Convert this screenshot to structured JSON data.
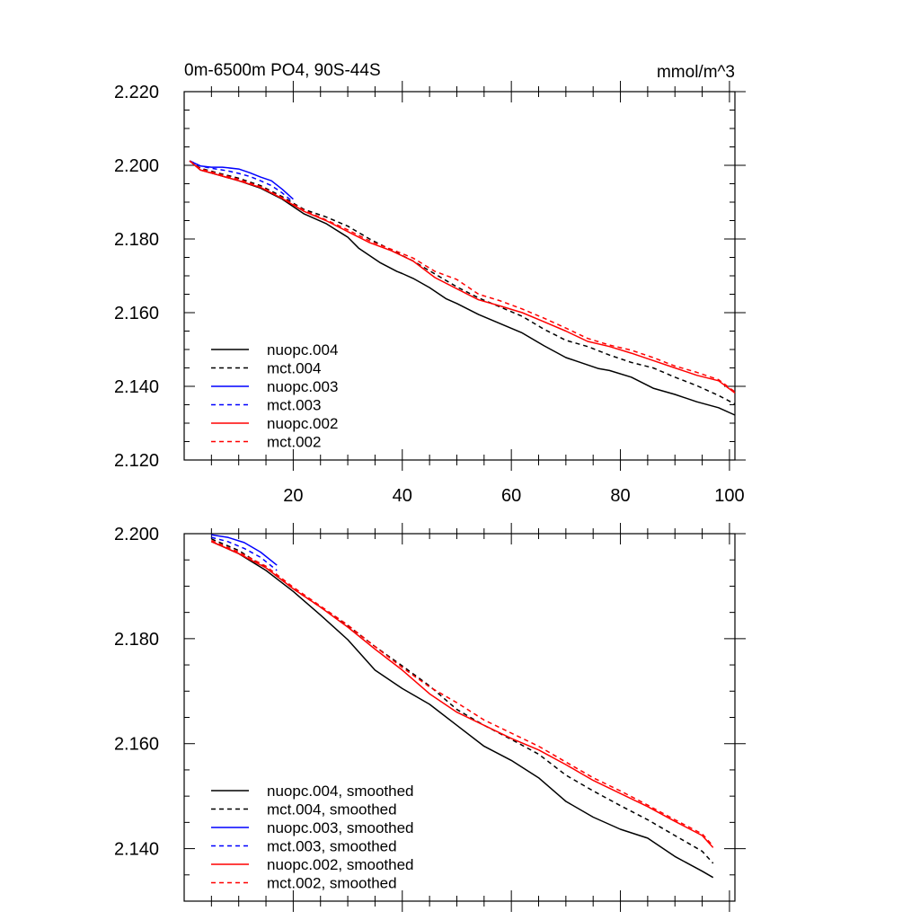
{
  "chart_data": [
    {
      "type": "line",
      "title": "0m-6500m PO4, 90S-44S",
      "units": "mmol/m^3",
      "xlabel": "",
      "ylabel": "",
      "xlim": [
        0,
        101
      ],
      "ylim": [
        2.12,
        2.22
      ],
      "x_ticks": [
        20,
        40,
        60,
        80,
        100
      ],
      "x_tick_labels": [
        "20",
        "40",
        "60",
        "80",
        "100"
      ],
      "y_ticks": [
        2.12,
        2.14,
        2.16,
        2.18,
        2.2,
        2.22
      ],
      "y_tick_labels": [
        "2.120",
        "2.140",
        "2.160",
        "2.180",
        "2.200",
        "2.220"
      ],
      "legend_position": "bottom-left",
      "series": [
        {
          "name": "nuopc.004",
          "color": "#000000",
          "dash": "solid",
          "x": [
            1,
            3,
            6,
            10,
            14,
            18,
            22,
            26,
            30,
            32,
            36,
            39,
            40,
            42,
            45,
            48,
            50,
            54,
            58,
            62,
            66,
            70,
            72,
            76,
            78,
            82,
            86,
            90,
            94,
            98,
            101
          ],
          "y": [
            2.2012,
            2.1987,
            2.1975,
            2.1958,
            2.1938,
            2.1908,
            2.1868,
            2.1842,
            2.1805,
            2.1775,
            2.1735,
            2.1712,
            2.1706,
            2.1693,
            2.1668,
            2.1638,
            2.1625,
            2.1595,
            2.157,
            2.1545,
            2.151,
            2.1478,
            2.1468,
            2.1448,
            2.1443,
            2.1425,
            2.1395,
            2.1378,
            2.1358,
            2.1342,
            2.1322
          ]
        },
        {
          "name": "mct.004",
          "color": "#000000",
          "dash": "dashed",
          "x": [
            1,
            3,
            6,
            10,
            14,
            18,
            22,
            26,
            30,
            34,
            38,
            42,
            46,
            50,
            54,
            58,
            62,
            66,
            70,
            74,
            78,
            82,
            86,
            90,
            94,
            98,
            101
          ],
          "y": [
            2.2012,
            2.1992,
            2.198,
            2.1965,
            2.1945,
            2.1915,
            2.188,
            2.186,
            2.1835,
            2.18,
            2.177,
            2.174,
            2.1705,
            2.167,
            2.164,
            2.1615,
            2.159,
            2.1555,
            2.1525,
            2.1508,
            2.1485,
            2.1465,
            2.145,
            2.1425,
            2.1402,
            2.1375,
            2.1352
          ]
        },
        {
          "name": "nuopc.003",
          "color": "#0000ff",
          "dash": "solid",
          "x": [
            1,
            3,
            5,
            7,
            10,
            12,
            14,
            16,
            18,
            20
          ],
          "y": [
            2.2012,
            2.1998,
            2.1995,
            2.1995,
            2.199,
            2.198,
            2.1968,
            2.1958,
            2.1935,
            2.1908
          ]
        },
        {
          "name": "mct.003",
          "color": "#0000ff",
          "dash": "dashed",
          "x": [
            1,
            3,
            5,
            8,
            10,
            12,
            14,
            16,
            18,
            20
          ],
          "y": [
            2.2012,
            2.1998,
            2.1992,
            2.1985,
            2.1978,
            2.197,
            2.1958,
            2.1945,
            2.1925,
            2.19
          ]
        },
        {
          "name": "nuopc.002",
          "color": "#ff0000",
          "dash": "solid",
          "x": [
            1,
            3,
            6,
            10,
            14,
            18,
            22,
            26,
            30,
            34,
            38,
            42,
            46,
            50,
            54,
            58,
            62,
            66,
            70,
            74,
            78,
            82,
            86,
            90,
            94,
            98,
            101
          ],
          "y": [
            2.2012,
            2.1987,
            2.1975,
            2.1958,
            2.194,
            2.191,
            2.1875,
            2.185,
            2.182,
            2.179,
            2.1768,
            2.174,
            2.1695,
            2.1665,
            2.1635,
            2.1618,
            2.16,
            2.1575,
            2.155,
            2.1522,
            2.1508,
            2.149,
            2.147,
            2.145,
            2.143,
            2.1415,
            2.1382
          ]
        },
        {
          "name": "mct.002",
          "color": "#ff0000",
          "dash": "dashed",
          "x": [
            1,
            3,
            6,
            10,
            14,
            18,
            22,
            26,
            30,
            34,
            38,
            42,
            46,
            50,
            54,
            58,
            62,
            66,
            70,
            74,
            78,
            82,
            86,
            90,
            94,
            98,
            101
          ],
          "y": [
            2.2012,
            2.199,
            2.1978,
            2.1962,
            2.1942,
            2.1912,
            2.1878,
            2.1852,
            2.1825,
            2.1795,
            2.1772,
            2.1748,
            2.1712,
            2.169,
            2.165,
            2.1632,
            2.161,
            2.1585,
            2.1558,
            2.153,
            2.1512,
            2.1498,
            2.1478,
            2.1455,
            2.1438,
            2.1418,
            2.1385
          ]
        }
      ]
    },
    {
      "type": "line",
      "title": "",
      "xlabel": "",
      "ylabel": "",
      "xlim": [
        0,
        101
      ],
      "ylim": [
        2.13,
        2.2
      ],
      "x_ticks": [
        20,
        40,
        60,
        80,
        100
      ],
      "x_tick_labels": [
        "",
        "",
        "",
        "",
        ""
      ],
      "y_ticks": [
        2.14,
        2.16,
        2.18,
        2.2
      ],
      "y_tick_labels": [
        "2.140",
        "2.160",
        "2.180",
        "2.200"
      ],
      "legend_position": "bottom-left",
      "series": [
        {
          "name": "nuopc.004, smoothed",
          "color": "#000000",
          "dash": "solid",
          "x": [
            5,
            10,
            15,
            20,
            25,
            30,
            35,
            40,
            45,
            50,
            55,
            60,
            65,
            70,
            75,
            80,
            85,
            90,
            95,
            97
          ],
          "y": [
            2.1985,
            2.1962,
            2.193,
            2.189,
            2.1845,
            2.1798,
            2.174,
            2.1705,
            2.1675,
            2.1635,
            2.1595,
            2.1568,
            2.1535,
            2.149,
            2.146,
            2.1437,
            2.142,
            2.1385,
            2.1357,
            2.1345
          ]
        },
        {
          "name": "mct.004, smoothed",
          "color": "#000000",
          "dash": "dashed",
          "x": [
            5,
            10,
            15,
            20,
            25,
            30,
            35,
            40,
            45,
            50,
            55,
            60,
            65,
            70,
            75,
            80,
            85,
            90,
            95,
            97
          ],
          "y": [
            2.199,
            2.1968,
            2.1935,
            2.1895,
            2.186,
            2.1825,
            2.1785,
            2.1748,
            2.171,
            2.1665,
            2.1635,
            2.1608,
            2.158,
            2.154,
            2.151,
            2.1482,
            2.1455,
            2.1425,
            2.1395,
            2.1372
          ]
        },
        {
          "name": "nuopc.003, smoothed",
          "color": "#0000ff",
          "dash": "solid",
          "x": [
            5,
            8,
            11,
            14,
            17
          ],
          "y": [
            2.1998,
            2.1993,
            2.1983,
            2.1965,
            2.194
          ]
        },
        {
          "name": "mct.003, smoothed",
          "color": "#0000ff",
          "dash": "dashed",
          "x": [
            5,
            8,
            11,
            14,
            17
          ],
          "y": [
            2.1993,
            2.1985,
            2.1972,
            2.1955,
            2.193
          ]
        },
        {
          "name": "nuopc.002, smoothed",
          "color": "#ff0000",
          "dash": "solid",
          "x": [
            5,
            10,
            15,
            20,
            25,
            30,
            35,
            40,
            45,
            50,
            55,
            60,
            65,
            70,
            75,
            80,
            85,
            90,
            95,
            97
          ],
          "y": [
            2.1985,
            2.1962,
            2.1935,
            2.1895,
            2.186,
            2.1822,
            2.178,
            2.174,
            2.1695,
            2.166,
            2.1635,
            2.161,
            2.1588,
            2.156,
            2.153,
            2.1505,
            2.148,
            2.1452,
            2.1425,
            2.1402
          ]
        },
        {
          "name": "mct.002, smoothed",
          "color": "#ff0000",
          "dash": "dashed",
          "x": [
            5,
            10,
            15,
            20,
            25,
            30,
            35,
            40,
            45,
            50,
            55,
            60,
            65,
            70,
            75,
            80,
            85,
            90,
            95,
            97
          ],
          "y": [
            2.1987,
            2.1965,
            2.1938,
            2.1898,
            2.1862,
            2.1826,
            2.1785,
            2.1745,
            2.1708,
            2.1678,
            2.1645,
            2.162,
            2.1595,
            2.1565,
            2.1535,
            2.151,
            2.1483,
            2.1455,
            2.1428,
            2.1405
          ]
        }
      ]
    }
  ]
}
